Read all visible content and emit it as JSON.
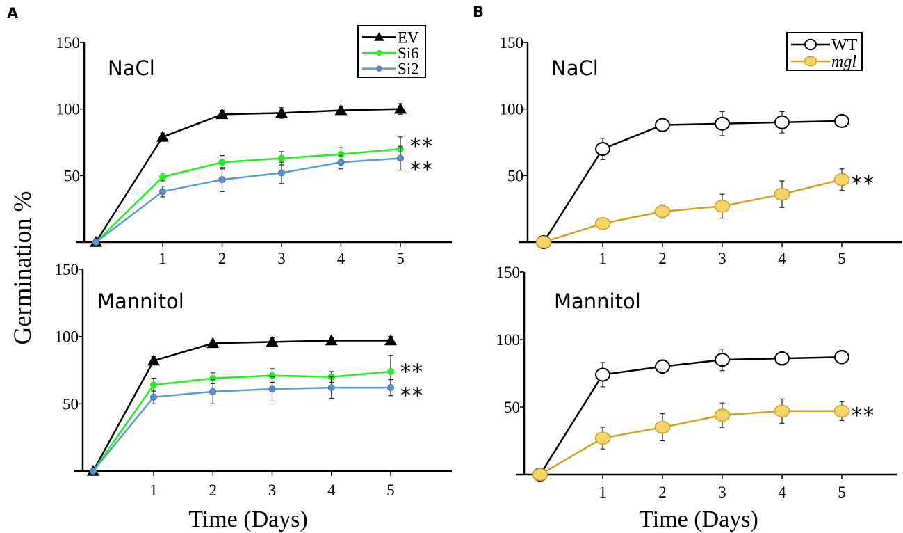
{
  "figure": {
    "panel_labels": [
      "A",
      "B"
    ],
    "ylabel": "Germination %",
    "xlabel": "Time (Days)"
  },
  "chart_data": [
    {
      "type": "line",
      "panel": "A",
      "title": "NaCl",
      "x": [
        0,
        1,
        2,
        3,
        4,
        5
      ],
      "xticks": [
        1,
        2,
        3,
        4,
        5
      ],
      "ylim": [
        0,
        150
      ],
      "yticks": [
        50,
        100,
        150
      ],
      "grid": false,
      "legend": {
        "placement": "top-right",
        "entries": [
          "EV",
          "Si6",
          "Si2"
        ]
      },
      "series": [
        {
          "name": "EV",
          "color": "#000000",
          "marker": "triangle",
          "values": [
            0,
            79,
            96,
            97,
            99,
            100
          ],
          "errors": [
            0,
            3,
            3,
            4,
            3,
            4
          ]
        },
        {
          "name": "Si6",
          "color": "#22ee22",
          "marker": "circle",
          "values": [
            0,
            49,
            60,
            63,
            66,
            70
          ],
          "errors": [
            0,
            3,
            5,
            5,
            5,
            9
          ],
          "annotation": "**"
        },
        {
          "name": "Si2",
          "color": "#5b9bd5",
          "marker": "circle",
          "values": [
            0,
            38,
            47,
            52,
            60,
            63
          ],
          "errors": [
            0,
            4,
            9,
            8,
            5,
            9
          ],
          "annotation": "**"
        }
      ]
    },
    {
      "type": "line",
      "panel": "A",
      "title": "Mannitol",
      "x": [
        0,
        1,
        2,
        3,
        4,
        5
      ],
      "xticks": [
        1,
        2,
        3,
        4,
        5
      ],
      "ylim": [
        0,
        150
      ],
      "yticks": [
        50,
        100,
        150
      ],
      "grid": false,
      "series": [
        {
          "name": "EV",
          "color": "#000000",
          "marker": "triangle",
          "values": [
            0,
            82,
            95,
            96,
            97,
            97
          ],
          "errors": [
            0,
            3,
            2,
            3,
            2,
            3
          ]
        },
        {
          "name": "Si6",
          "color": "#22ee22",
          "marker": "circle",
          "values": [
            0,
            64,
            69,
            71,
            70,
            74
          ],
          "errors": [
            0,
            5,
            4,
            5,
            4,
            12
          ],
          "annotation": "**"
        },
        {
          "name": "Si2",
          "color": "#5b9bd5",
          "marker": "circle",
          "values": [
            0,
            55,
            59,
            61,
            62,
            62
          ],
          "errors": [
            0,
            5,
            9,
            9,
            8,
            6
          ],
          "annotation": "**"
        }
      ]
    },
    {
      "type": "line",
      "panel": "B",
      "title": "NaCl",
      "x": [
        0,
        1,
        2,
        3,
        4,
        5
      ],
      "xticks": [
        1,
        2,
        3,
        4,
        5
      ],
      "ylim": [
        0,
        150
      ],
      "yticks": [
        50,
        100,
        150
      ],
      "grid": false,
      "legend": {
        "placement": "top-right",
        "entries": [
          "WT",
          "mgl"
        ]
      },
      "series": [
        {
          "name": "WT",
          "color": "#000000",
          "marker": "open-circle",
          "values": [
            0,
            70,
            88,
            89,
            90,
            91
          ],
          "errors": [
            0,
            8,
            3,
            9,
            8,
            3
          ]
        },
        {
          "name": "mgl",
          "color": "#c9a227",
          "fill": "#f5d469",
          "marker": "filled-circle",
          "values": [
            0,
            14,
            23,
            27,
            36,
            47
          ],
          "errors": [
            0,
            3,
            5,
            9,
            10,
            8
          ],
          "annotation": "**"
        }
      ]
    },
    {
      "type": "line",
      "panel": "B",
      "title": "Mannitol",
      "x": [
        0,
        1,
        2,
        3,
        4,
        5
      ],
      "xticks": [
        1,
        2,
        3,
        4,
        5
      ],
      "ylim": [
        0,
        150
      ],
      "yticks": [
        50,
        100,
        150
      ],
      "grid": false,
      "series": [
        {
          "name": "WT",
          "color": "#000000",
          "marker": "open-circle",
          "values": [
            0,
            74,
            80,
            85,
            86,
            87
          ],
          "errors": [
            0,
            9,
            5,
            8,
            5,
            5
          ]
        },
        {
          "name": "mgl",
          "color": "#c9a227",
          "fill": "#f5d469",
          "marker": "filled-circle",
          "values": [
            0,
            27,
            35,
            44,
            47,
            47
          ],
          "errors": [
            0,
            8,
            10,
            9,
            9,
            7
          ],
          "annotation": "**"
        }
      ]
    }
  ]
}
